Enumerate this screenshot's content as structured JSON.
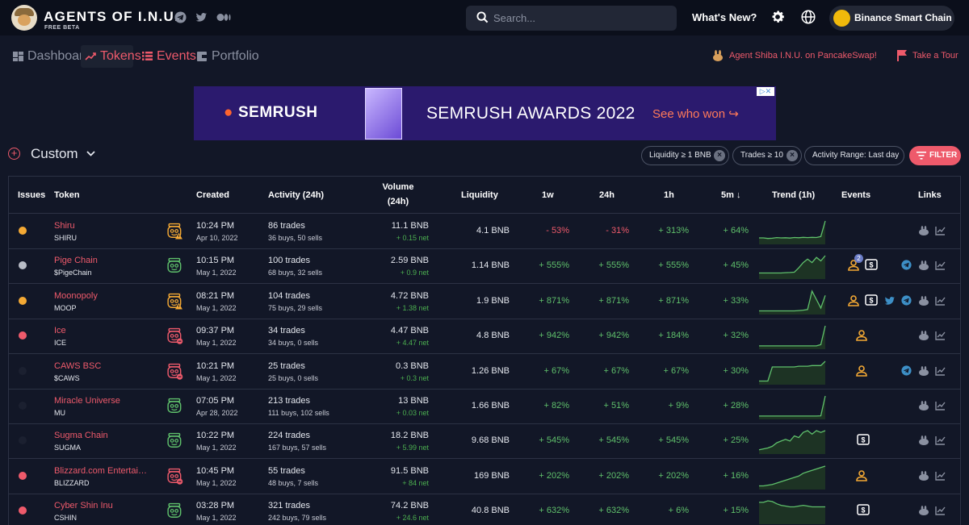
{
  "header": {
    "brand": "AGENTS OF I.N.U.",
    "beta": "FREE BETA",
    "search_placeholder": "Search...",
    "whats_new": "What's New?",
    "chain": "Binance Smart Chain"
  },
  "nav": {
    "items": [
      {
        "label": "Dashboard",
        "icon": "dashboard-icon",
        "active": false
      },
      {
        "label": "Tokens",
        "icon": "trending-icon",
        "active": true
      },
      {
        "label": "Events",
        "icon": "list-icon",
        "active": false
      },
      {
        "label": "Portfolio",
        "icon": "wallet-icon",
        "active": false
      }
    ],
    "pancake_link": "Agent Shiba I.N.U. on PancakeSwap!",
    "tour": "Take a Tour"
  },
  "ad": {
    "brand": "SEMRUSH",
    "headline": "SEMRUSH AWARDS 2022",
    "cta": "See who won ↪"
  },
  "filters": {
    "view": "Custom",
    "chips": [
      "Liquidity ≥ 1 BNB",
      "Trades ≥ 10",
      "Activity Range: Last day"
    ],
    "filter_button": "FILTER"
  },
  "table": {
    "headers": {
      "issues": "Issues",
      "token": "Token",
      "created": "Created",
      "activity": "Activity (24h)",
      "volume1": "Volume",
      "volume2": "(24h)",
      "liquidity": "Liquidity",
      "w1": "1w",
      "h24": "24h",
      "h1": "1h",
      "m5": "5m ↓",
      "trend": "Trend (1h)",
      "events": "Events",
      "links": "Links"
    },
    "rows": [
      {
        "issue_color": "#f4a934",
        "name": "Shiru",
        "symbol": "SHIRU",
        "jar": "warn",
        "time": "10:24 PM",
        "date": "Apr 10, 2022",
        "trades": "86 trades",
        "buys_sells": "36 buys, 50 sells",
        "volume": "11.1 BNB",
        "net": "+ 0.15 net",
        "liquidity": "4.1 BNB",
        "w1": "- 53%",
        "h24": "- 31%",
        "h1": "+ 313%",
        "m5": "+ 64%",
        "trend": [
          4,
          4,
          3.6,
          3.8,
          4.2,
          4,
          4.1,
          3.9,
          4.3,
          4.1,
          4.4,
          4.2,
          4.4,
          4.3,
          5,
          16
        ],
        "events": [],
        "links": [
          "pancake-icon",
          "chart-icon"
        ]
      },
      {
        "issue_color": "#b8bcc6",
        "name": "Pige Chain",
        "symbol": "$PigeChain",
        "jar": "ok",
        "time": "10:15 PM",
        "date": "May 1, 2022",
        "trades": "100 trades",
        "buys_sells": "68 buys, 32 sells",
        "volume": "2.59 BNB",
        "net": "+ 0.9 net",
        "liquidity": "1.14 BNB",
        "w1": "+ 555%",
        "h24": "+ 555%",
        "h1": "+ 555%",
        "m5": "+ 45%",
        "trend": [
          3,
          3,
          3,
          3,
          3,
          3,
          3.2,
          3.3,
          3.5,
          6,
          9,
          11,
          9,
          12,
          10,
          13
        ],
        "events": [
          "person-icon",
          "dollar-icon"
        ],
        "event_badge": "2",
        "links": [
          "telegram-icon",
          "pancake-icon",
          "chart-icon"
        ]
      },
      {
        "issue_color": "#f4a934",
        "name": "Moonopoly",
        "symbol": "MOOP",
        "jar": "warn",
        "time": "08:21 PM",
        "date": "May 1, 2022",
        "trades": "104 trades",
        "buys_sells": "75 buys, 29 sells",
        "volume": "4.72 BNB",
        "net": "+ 1.38 net",
        "liquidity": "1.9 BNB",
        "w1": "+ 871%",
        "h24": "+ 871%",
        "h1": "+ 871%",
        "m5": "+ 33%",
        "trend": [
          2,
          2,
          2,
          2,
          2,
          2,
          2,
          2,
          2,
          2.2,
          2.5,
          3,
          16,
          10,
          4,
          13
        ],
        "events": [
          "person-icon",
          "dollar-icon"
        ],
        "links": [
          "twitter-icon",
          "telegram-icon",
          "pancake-icon",
          "chart-icon"
        ]
      },
      {
        "issue_color": "#ee5a6b",
        "name": "Ice",
        "symbol": "ICE",
        "jar": "danger",
        "time": "09:37 PM",
        "date": "May 1, 2022",
        "trades": "34 trades",
        "buys_sells": "34 buys, 0 sells",
        "volume": "4.47 BNB",
        "net": "+ 4.47 net",
        "liquidity": "4.8 BNB",
        "w1": "+ 942%",
        "h24": "+ 942%",
        "h1": "+ 184%",
        "m5": "+ 32%",
        "trend": [
          2,
          2,
          2,
          2,
          2,
          2,
          2,
          2,
          2,
          2,
          2,
          2,
          2,
          2,
          3,
          18
        ],
        "events": [
          "person-icon"
        ],
        "links": [
          "pancake-icon",
          "chart-icon"
        ]
      },
      {
        "issue_color": "#1b2030",
        "name": "CAWS BSC",
        "symbol": "$CAWS",
        "jar": "danger",
        "time": "10:21 PM",
        "date": "May 1, 2022",
        "trades": "25 trades",
        "buys_sells": "25 buys, 0 sells",
        "volume": "0.3 BNB",
        "net": "+ 0.3 net",
        "liquidity": "1.26 BNB",
        "w1": "+ 67%",
        "h24": "+ 67%",
        "h1": "+ 67%",
        "m5": "+ 30%",
        "trend": [
          2,
          2,
          2,
          12,
          12,
          12,
          12,
          12,
          12,
          12.5,
          12.5,
          12.5,
          13,
          13,
          13,
          16
        ],
        "events": [
          "person-icon"
        ],
        "links": [
          "telegram-icon",
          "pancake-icon",
          "chart-icon"
        ]
      },
      {
        "issue_color": "#1b2030",
        "name": "Miracle Universe",
        "symbol": "MU",
        "jar": "ok",
        "time": "07:05 PM",
        "date": "Apr 28, 2022",
        "trades": "213 trades",
        "buys_sells": "111 buys, 102 sells",
        "volume": "13 BNB",
        "net": "+ 0.03 net",
        "liquidity": "1.66 BNB",
        "w1": "+ 82%",
        "h24": "+ 51%",
        "h1": "+ 9%",
        "m5": "+ 28%",
        "trend": [
          2,
          2,
          2,
          2,
          2,
          2,
          2,
          2,
          2,
          2,
          2,
          2,
          2,
          2,
          2.2,
          18
        ],
        "events": [],
        "links": [
          "pancake-icon",
          "chart-icon"
        ]
      },
      {
        "issue_color": "#1b2030",
        "name": "Sugma Chain",
        "symbol": "SUGMA",
        "jar": "ok",
        "time": "10:22 PM",
        "date": "May 1, 2022",
        "trades": "224 trades",
        "buys_sells": "167 buys, 57 sells",
        "volume": "18.2 BNB",
        "net": "+ 5.99 net",
        "liquidity": "9.68 BNB",
        "w1": "+ 545%",
        "h24": "+ 545%",
        "h1": "+ 545%",
        "m5": "+ 25%",
        "trend": [
          2,
          2.5,
          3,
          4,
          6,
          7,
          8,
          7,
          10,
          9,
          12,
          13,
          11,
          13,
          12,
          13
        ],
        "events": [
          "dollar-icon"
        ],
        "links": [
          "pancake-icon",
          "chart-icon"
        ]
      },
      {
        "issue_color": "#ee5a6b",
        "name": "Blizzard.com Entertainment",
        "symbol": "BLIZZARD",
        "jar": "danger",
        "time": "10:45 PM",
        "date": "May 1, 2022",
        "trades": "55 trades",
        "buys_sells": "48 buys, 7 sells",
        "volume": "91.5 BNB",
        "net": "+ 84 net",
        "liquidity": "169 BNB",
        "w1": "+ 202%",
        "h24": "+ 202%",
        "h1": "+ 202%",
        "m5": "+ 16%",
        "trend": [
          2,
          2,
          2.5,
          3,
          4,
          5,
          6,
          7,
          8,
          9,
          11,
          12,
          13,
          14,
          15,
          16
        ],
        "events": [
          "person-icon"
        ],
        "links": [
          "pancake-icon",
          "chart-icon"
        ]
      },
      {
        "issue_color": "#ee5a6b",
        "name": "Cyber Shin Inu",
        "symbol": "CSHIN",
        "jar": "ok",
        "time": "03:28 PM",
        "date": "May 1, 2022",
        "trades": "321 trades",
        "buys_sells": "242 buys, 79 sells",
        "volume": "74.2 BNB",
        "net": "+ 24.6 net",
        "liquidity": "40.8 BNB",
        "w1": "+ 632%",
        "h24": "+ 632%",
        "h1": "+ 6%",
        "m5": "+ 15%",
        "trend": [
          14,
          14,
          15,
          14.5,
          13,
          12,
          11.5,
          11,
          11,
          11.5,
          12,
          11.5,
          11,
          11,
          11,
          11
        ],
        "events": [
          "dollar-icon"
        ],
        "links": [
          "pancake-icon",
          "chart-icon"
        ]
      }
    ]
  },
  "colors": {
    "accent": "#ee5a6b",
    "positive": "#5fc06b",
    "warn": "#f4a934",
    "bnb": "#f0b90b"
  }
}
